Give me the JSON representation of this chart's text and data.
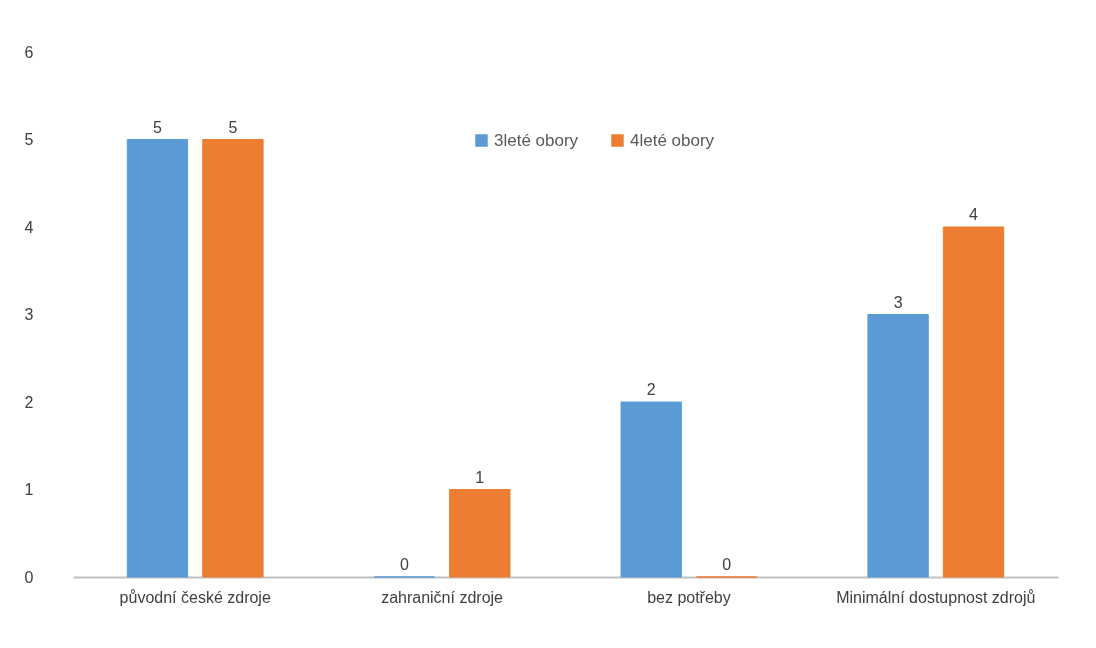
{
  "chart_data": {
    "type": "bar",
    "categories": [
      "původní české zdroje",
      "zahraniční zdroje",
      "bez potřeby",
      "Minimální dostupnost zdrojů"
    ],
    "series": [
      {
        "name": "3leté obory",
        "color": "#5b9bd5",
        "values": [
          5,
          0,
          2,
          3
        ]
      },
      {
        "name": "4leté obory",
        "color": "#ed7d31",
        "values": [
          5,
          1,
          0,
          4
        ]
      }
    ],
    "ylim": [
      0,
      6
    ],
    "yticks": [
      0,
      1,
      2,
      3,
      4,
      5,
      6
    ],
    "grid": false,
    "legend": "top",
    "data_labels": true
  }
}
